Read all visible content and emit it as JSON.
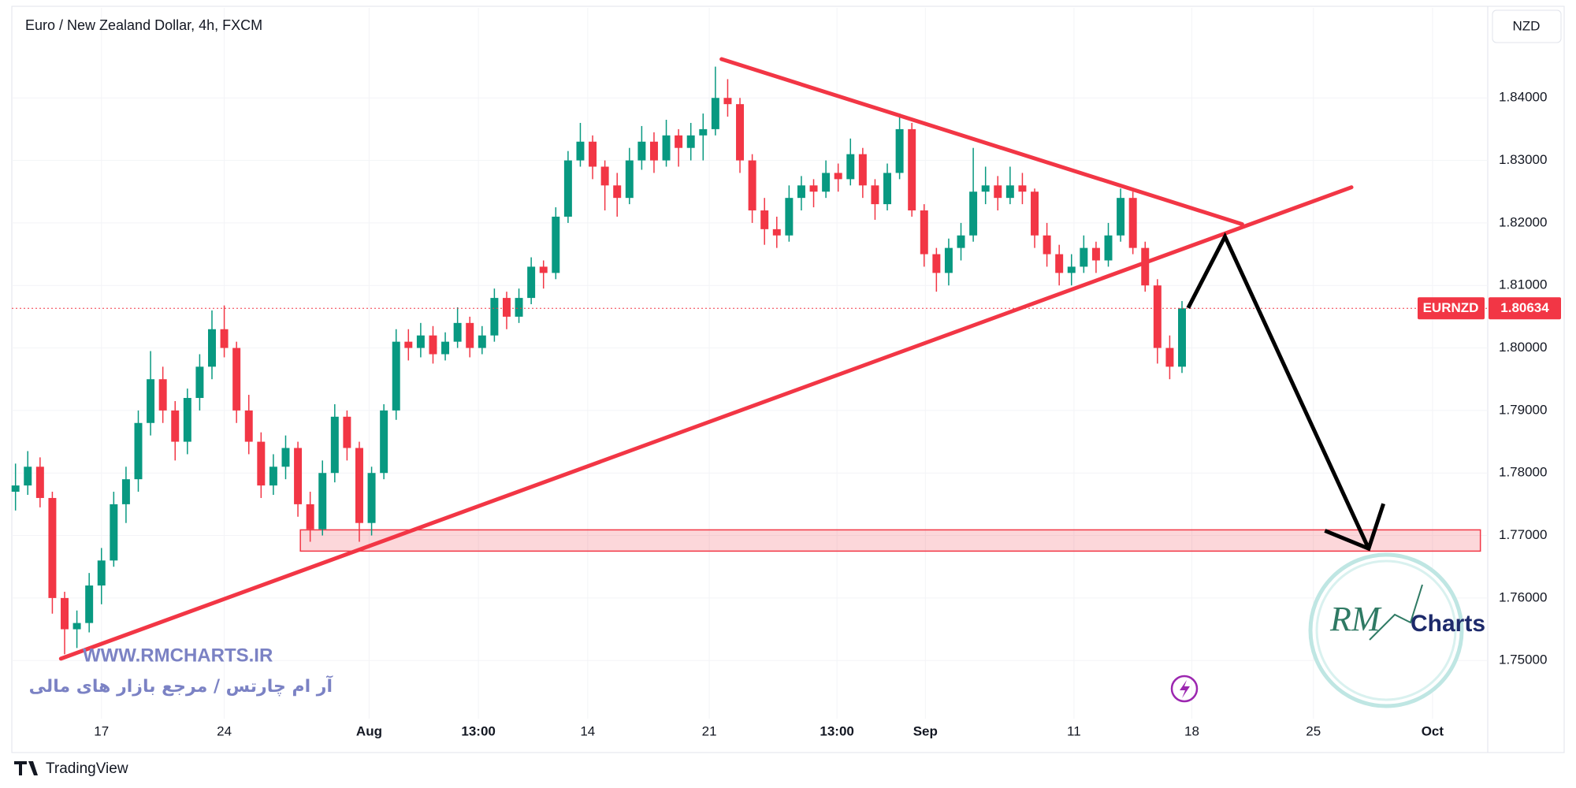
{
  "chart_data": {
    "type": "candlestick",
    "title": "Euro / New Zealand Dollar, 4h, FXCM",
    "currency": "NZD",
    "up_color": "#089981",
    "down_color": "#f23645",
    "open": [
      1.777,
      1.778,
      1.781,
      1.776,
      1.76,
      1.755,
      1.756,
      1.762,
      1.766,
      1.775,
      1.779,
      1.788,
      1.795,
      1.79,
      1.785,
      1.792,
      1.797,
      1.803,
      1.8,
      1.79,
      1.785,
      1.778,
      1.781,
      1.784,
      1.775,
      1.771,
      1.78,
      1.789,
      1.784,
      1.772,
      1.78,
      1.79,
      1.801,
      1.8,
      1.802,
      1.799,
      1.801,
      1.804,
      1.8,
      1.802,
      1.808,
      1.805,
      1.808,
      1.813,
      1.812,
      1.821,
      1.83,
      1.833,
      1.829,
      1.826,
      1.824,
      1.83,
      1.833,
      1.83,
      1.834,
      1.832,
      1.834,
      1.835,
      1.84,
      1.839,
      1.83,
      1.822,
      1.819,
      1.818,
      1.824,
      1.826,
      1.825,
      1.828,
      1.827,
      1.831,
      1.826,
      1.823,
      1.828,
      1.835,
      1.822,
      1.815,
      1.812,
      1.816,
      1.818,
      1.825,
      1.826,
      1.824,
      1.826,
      1.825,
      1.818,
      1.815,
      1.812,
      1.813,
      1.816,
      1.814,
      1.818,
      1.824,
      1.816,
      1.81,
      1.8,
      1.797
    ],
    "high": [
      1.7815,
      1.7835,
      1.7825,
      1.777,
      1.761,
      1.758,
      1.764,
      1.768,
      1.777,
      1.781,
      1.79,
      1.7995,
      1.797,
      1.7915,
      1.7935,
      1.799,
      1.806,
      1.8068,
      1.801,
      1.7925,
      1.7865,
      1.783,
      1.786,
      1.785,
      1.777,
      1.782,
      1.791,
      1.79,
      1.785,
      1.781,
      1.791,
      1.803,
      1.803,
      1.804,
      1.8035,
      1.8025,
      1.8065,
      1.805,
      1.8035,
      1.8095,
      1.809,
      1.8095,
      1.8145,
      1.814,
      1.8225,
      1.8315,
      1.836,
      1.834,
      1.83,
      1.828,
      1.832,
      1.8355,
      1.8345,
      1.8365,
      1.835,
      1.836,
      1.8375,
      1.845,
      1.843,
      1.84,
      1.831,
      1.824,
      1.821,
      1.826,
      1.8275,
      1.827,
      1.83,
      1.8295,
      1.8335,
      1.832,
      1.827,
      1.8295,
      1.8375,
      1.836,
      1.823,
      1.816,
      1.8175,
      1.82,
      1.832,
      1.829,
      1.8275,
      1.829,
      1.828,
      1.8255,
      1.82,
      1.8165,
      1.815,
      1.818,
      1.817,
      1.82,
      1.8255,
      1.825,
      1.817,
      1.811,
      1.802,
      1.8075
    ],
    "low": [
      1.774,
      1.7765,
      1.7745,
      1.7575,
      1.751,
      1.752,
      1.7545,
      1.759,
      1.765,
      1.772,
      1.777,
      1.786,
      1.788,
      1.782,
      1.783,
      1.79,
      1.795,
      1.7985,
      1.788,
      1.783,
      1.776,
      1.7765,
      1.779,
      1.773,
      1.769,
      1.77,
      1.7785,
      1.782,
      1.769,
      1.77,
      1.779,
      1.7885,
      1.798,
      1.7985,
      1.7975,
      1.798,
      1.8,
      1.7985,
      1.799,
      1.801,
      1.803,
      1.804,
      1.807,
      1.8095,
      1.811,
      1.82,
      1.829,
      1.827,
      1.822,
      1.821,
      1.823,
      1.8285,
      1.828,
      1.829,
      1.829,
      1.83,
      1.83,
      1.834,
      1.837,
      1.828,
      1.82,
      1.8165,
      1.816,
      1.817,
      1.822,
      1.8225,
      1.824,
      1.825,
      1.826,
      1.824,
      1.8205,
      1.822,
      1.827,
      1.821,
      1.813,
      1.809,
      1.81,
      1.814,
      1.817,
      1.823,
      1.822,
      1.823,
      1.823,
      1.816,
      1.813,
      1.81,
      1.81,
      1.812,
      1.812,
      1.813,
      1.817,
      1.815,
      1.809,
      1.7975,
      1.795,
      1.796
    ],
    "close": [
      1.778,
      1.781,
      1.776,
      1.76,
      1.755,
      1.756,
      1.762,
      1.766,
      1.775,
      1.779,
      1.788,
      1.795,
      1.79,
      1.785,
      1.792,
      1.797,
      1.803,
      1.8,
      1.79,
      1.785,
      1.778,
      1.781,
      1.784,
      1.775,
      1.771,
      1.78,
      1.789,
      1.784,
      1.772,
      1.78,
      1.79,
      1.801,
      1.8,
      1.802,
      1.799,
      1.801,
      1.804,
      1.8,
      1.802,
      1.808,
      1.805,
      1.808,
      1.813,
      1.812,
      1.821,
      1.83,
      1.833,
      1.829,
      1.826,
      1.824,
      1.83,
      1.833,
      1.83,
      1.834,
      1.832,
      1.834,
      1.835,
      1.84,
      1.839,
      1.83,
      1.822,
      1.819,
      1.818,
      1.824,
      1.826,
      1.825,
      1.828,
      1.827,
      1.831,
      1.826,
      1.823,
      1.828,
      1.835,
      1.822,
      1.815,
      1.812,
      1.816,
      1.818,
      1.825,
      1.826,
      1.824,
      1.826,
      1.825,
      1.818,
      1.815,
      1.812,
      1.813,
      1.816,
      1.814,
      1.818,
      1.824,
      1.816,
      1.81,
      1.8,
      1.797,
      1.80634
    ],
    "xlim": [
      -0.3,
      119.9
    ],
    "xticks": [
      {
        "value": 7.0,
        "label": "17"
      },
      {
        "value": 17.0,
        "label": "24"
      },
      {
        "value": 28.8,
        "label": "Aug"
      },
      {
        "value": 37.7,
        "label": "13:00"
      },
      {
        "value": 46.6,
        "label": "14"
      },
      {
        "value": 56.5,
        "label": "21"
      },
      {
        "value": 66.9,
        "label": "13:00"
      },
      {
        "value": 74.1,
        "label": "Sep"
      },
      {
        "value": 86.2,
        "label": "11"
      },
      {
        "value": 95.8,
        "label": "18"
      },
      {
        "value": 105.7,
        "label": "25"
      },
      {
        "value": 115.4,
        "label": "Oct"
      }
    ],
    "ylim": [
      1.7407,
      1.8544
    ],
    "yticks": [
      {
        "value": 1.75,
        "label": "1.75000"
      },
      {
        "value": 1.76,
        "label": "1.76000"
      },
      {
        "value": 1.77,
        "label": "1.77000"
      },
      {
        "value": 1.78,
        "label": "1.78000"
      },
      {
        "value": 1.79,
        "label": "1.79000"
      },
      {
        "value": 1.8,
        "label": "1.80000"
      },
      {
        "value": 1.81,
        "label": "1.81000"
      },
      {
        "value": 1.82,
        "label": "1.82000"
      },
      {
        "value": 1.83,
        "label": "1.83000"
      },
      {
        "value": 1.84,
        "label": "1.84000"
      }
    ],
    "last_price": {
      "symbol": "EURNZD",
      "value": 1.80634,
      "color": "#f23645"
    },
    "trendlines": [
      {
        "color": "#f23645",
        "points": [
          [
            57.5,
            1.8462
          ],
          [
            99.9,
            1.8198
          ]
        ]
      },
      {
        "color": "#f23645",
        "points": [
          [
            3.7,
            1.7503
          ],
          [
            108.8,
            1.8257
          ]
        ]
      }
    ],
    "zone": {
      "color": "#f23645",
      "x": [
        23.2,
        119.3
      ],
      "range": [
        1.7675,
        1.7709
      ]
    },
    "projection": {
      "color": "#000000",
      "points": [
        [
          95.5,
          1.8064
        ],
        [
          98.5,
          1.8178
        ],
        [
          110.2,
          1.7679
        ]
      ]
    },
    "watermark": {
      "site": "WWW.RMCHARTS.IR",
      "tagline": "آر ام چارتس / مرجع بازار های مالی",
      "logo_mark": "RM",
      "logo_text": "Charts"
    },
    "footer": "TradingView"
  }
}
